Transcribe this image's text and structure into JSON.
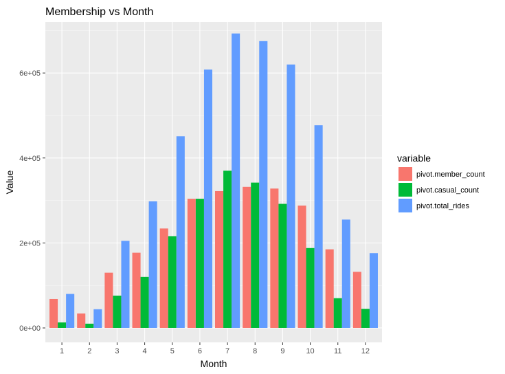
{
  "chart_data": {
    "type": "bar",
    "title": "Membership vs Month",
    "xlabel": "Month",
    "ylabel": "Value",
    "categories": [
      "1",
      "2",
      "3",
      "4",
      "5",
      "6",
      "7",
      "8",
      "9",
      "10",
      "11",
      "12"
    ],
    "ylim": [
      0,
      720000
    ],
    "yticks": [
      0,
      200000,
      400000,
      600000
    ],
    "ytick_labels": [
      "0e+00",
      "2e+05",
      "4e+05",
      "6e+05"
    ],
    "legend_title": "variable",
    "legend_position": "right",
    "series": [
      {
        "name": "pivot.member_count",
        "color": "#F8766D",
        "values": [
          68000,
          34000,
          130000,
          177000,
          234000,
          304000,
          322000,
          332000,
          328000,
          288000,
          185000,
          132000
        ]
      },
      {
        "name": "pivot.casual_count",
        "color": "#00BA38",
        "values": [
          13000,
          10000,
          76000,
          120000,
          216000,
          304000,
          370000,
          342000,
          292000,
          188000,
          70000,
          45000
        ]
      },
      {
        "name": "pivot.total_rides",
        "color": "#619CFF",
        "values": [
          80000,
          44000,
          205000,
          298000,
          451000,
          608000,
          693000,
          675000,
          620000,
          477000,
          255000,
          176000
        ]
      }
    ]
  }
}
